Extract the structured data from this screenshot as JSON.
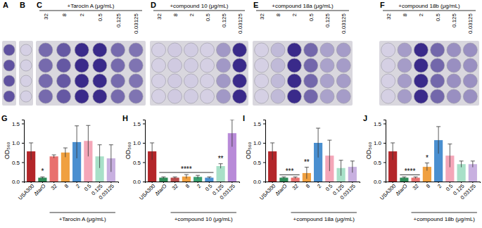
{
  "chart_data": [
    {
      "type": "bar",
      "title": "G",
      "categories": [
        "USA300",
        "ΔtarO",
        "32",
        "8",
        "2",
        "0.5",
        "0.125",
        "0.03125"
      ],
      "values": [
        0.78,
        0.1,
        0.65,
        0.75,
        1.02,
        1.05,
        0.65,
        0.6
      ],
      "errors": [
        0.22,
        0.02,
        0.04,
        0.12,
        0.42,
        0.4,
        0.3,
        0.35
      ],
      "colors": [
        "#b3262a",
        "#2e8b57",
        "#e8706e",
        "#f0a040",
        "#4a8fd0",
        "#f4a6b8",
        "#a8e0c8",
        "#c8b0e0"
      ],
      "ylabel": "OD₅₆₀",
      "xlabel": "+Tarocin A (μg/mL)",
      "ylim": [
        0,
        1.6
      ],
      "yticks": [
        {
          "value": 0,
          "label": "0.0"
        },
        {
          "value": 0.5,
          "label": "0.5"
        },
        {
          "value": 1,
          "label": "1.0"
        },
        {
          "value": 1.5,
          "label": "1.5"
        }
      ],
      "annotations": [
        {
          "text": "*",
          "from": 1,
          "to": 1
        }
      ]
    },
    {
      "type": "bar",
      "title": "H",
      "categories": [
        "USA300",
        "ΔtarO",
        "32",
        "8",
        "2",
        "0.5",
        "0.125",
        "0.03125"
      ],
      "values": [
        0.78,
        0.1,
        0.1,
        0.13,
        0.12,
        0.1,
        0.4,
        1.25
      ],
      "errors": [
        0.22,
        0.02,
        0.02,
        0.05,
        0.04,
        0.02,
        0.06,
        0.35
      ],
      "colors": [
        "#b3262a",
        "#2e8b57",
        "#b84a4a",
        "#f0a040",
        "#3aa070",
        "#4a8fd0",
        "#a8e0c8",
        "#b88ad8"
      ],
      "ylabel": "OD₅₆₀",
      "xlabel": "+compound 10 (μg/mL)",
      "ylim": [
        0,
        1.6
      ],
      "yticks": [
        {
          "value": 0,
          "label": "0.0"
        },
        {
          "value": 0.5,
          "label": "0.5"
        },
        {
          "value": 1,
          "label": "1.0"
        },
        {
          "value": 1.5,
          "label": "1.5"
        }
      ],
      "annotations": [
        {
          "text": "****",
          "from": 1,
          "to": 5
        },
        {
          "text": "**",
          "from": 6,
          "to": 6
        }
      ]
    },
    {
      "type": "bar",
      "title": "I",
      "categories": [
        "USA300",
        "ΔtarO",
        "32",
        "8",
        "2",
        "0.5",
        "0.125",
        "0.03125"
      ],
      "values": [
        0.78,
        0.1,
        0.1,
        0.22,
        1.0,
        0.67,
        0.35,
        0.38
      ],
      "errors": [
        0.22,
        0.02,
        0.02,
        0.15,
        0.38,
        0.4,
        0.2,
        0.15
      ],
      "colors": [
        "#b3262a",
        "#2e8b57",
        "#e8706e",
        "#f0a040",
        "#4a8fd0",
        "#f4a6b8",
        "#a8e0c8",
        "#c8b0e0"
      ],
      "ylabel": "OD₅₆₀",
      "xlabel": "+compound 18a (μg/mL)",
      "ylim": [
        0,
        1.6
      ],
      "yticks": [
        {
          "value": 0,
          "label": "0.0"
        },
        {
          "value": 0.5,
          "label": "0.5"
        },
        {
          "value": 1,
          "label": "1.0"
        },
        {
          "value": 1.5,
          "label": "1.5"
        }
      ],
      "annotations": [
        {
          "text": "***",
          "from": 1,
          "to": 2
        },
        {
          "text": "**",
          "from": 3,
          "to": 3
        }
      ]
    },
    {
      "type": "bar",
      "title": "J",
      "categories": [
        "USA300",
        "ΔtarO",
        "32",
        "8",
        "2",
        "0.5",
        "0.125",
        "0.03125"
      ],
      "values": [
        0.78,
        0.1,
        0.1,
        0.38,
        1.07,
        0.67,
        0.45,
        0.45
      ],
      "errors": [
        0.22,
        0.02,
        0.02,
        0.1,
        0.35,
        0.3,
        0.08,
        0.08
      ],
      "colors": [
        "#b3262a",
        "#2e8b57",
        "#e8706e",
        "#f0a040",
        "#4a8fd0",
        "#f4a6b8",
        "#a8e0c8",
        "#c8b0e0"
      ],
      "ylabel": "OD₅₆₀",
      "xlabel": "+compound 18b (μg/mL)",
      "ylim": [
        0,
        1.6
      ],
      "yticks": [
        {
          "value": 0,
          "label": "0.0"
        },
        {
          "value": 0.5,
          "label": "0.5"
        },
        {
          "value": 1,
          "label": "1.0"
        },
        {
          "value": 1.5,
          "label": "1.5"
        }
      ],
      "annotations": [
        {
          "text": "****",
          "from": 1,
          "to": 2
        },
        {
          "text": "*",
          "from": 3,
          "to": 3
        }
      ]
    }
  ],
  "plates": [
    {
      "label": "A"
    },
    {
      "label": "B"
    },
    {
      "label": "C",
      "header": "+Tarocin A (μg/mL)",
      "columns": [
        "32",
        "8",
        "2",
        "0.5",
        "0.125",
        "0.03125"
      ]
    },
    {
      "label": "D",
      "header": "+compound 10 (μg/mL)",
      "columns": [
        "32",
        "8",
        "2",
        "0.5",
        "0.125",
        "0.03125"
      ]
    },
    {
      "label": "E",
      "header": "+compound 18a (μg/mL)",
      "columns": [
        "32",
        "8",
        "2",
        "0.5",
        "0.125",
        "0.03125"
      ]
    },
    {
      "label": "F",
      "header": "+compound 18b (μg/mL)",
      "columns": [
        "32",
        "8",
        "2",
        "0.5",
        "0.125",
        "0.03125"
      ]
    }
  ]
}
